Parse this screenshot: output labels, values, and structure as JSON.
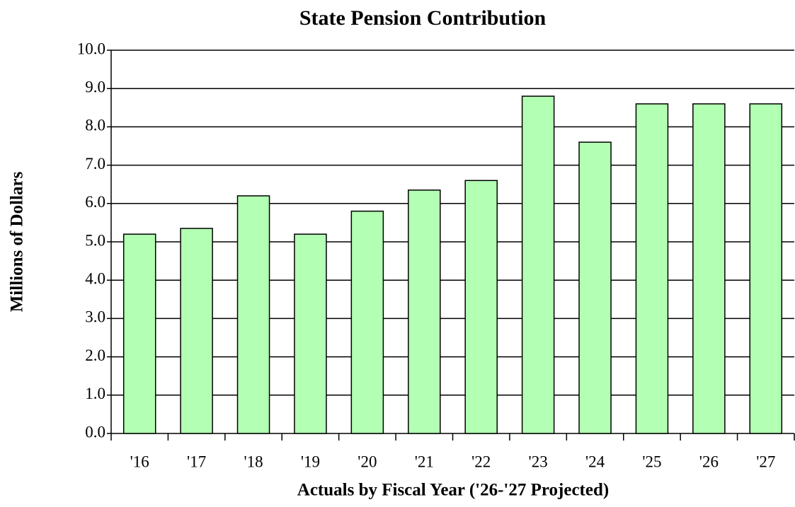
{
  "chart_data": {
    "type": "bar",
    "title": "State Pension Contribution",
    "x_label": "Actuals by Fiscal Year ('26-'27 Projected)",
    "y_label": "Millions of Dollars",
    "categories": [
      "'16",
      "'17",
      "'18",
      "'19",
      "'20",
      "'21",
      "'22",
      "'23",
      "'24",
      "'25",
      "'26",
      "'27"
    ],
    "values": [
      5.2,
      5.35,
      6.2,
      5.2,
      5.8,
      6.35,
      6.6,
      8.8,
      7.6,
      8.6,
      8.6,
      8.6
    ],
    "color": "#b3ffb3",
    "ylim": [
      0,
      10
    ],
    "yticks": [
      {
        "value": 0,
        "label": "0.0"
      },
      {
        "value": 1,
        "label": "1.0"
      },
      {
        "value": 2,
        "label": "2.0"
      },
      {
        "value": 3,
        "label": "3.0"
      },
      {
        "value": 4,
        "label": "4.0"
      },
      {
        "value": 5,
        "label": "5.0"
      },
      {
        "value": 6,
        "label": "6.0"
      },
      {
        "value": 7,
        "label": "7.0"
      },
      {
        "value": 8,
        "label": "8.0"
      },
      {
        "value": 9,
        "label": "9.0"
      },
      {
        "value": 10,
        "label": "10.0"
      }
    ],
    "grid": true
  }
}
